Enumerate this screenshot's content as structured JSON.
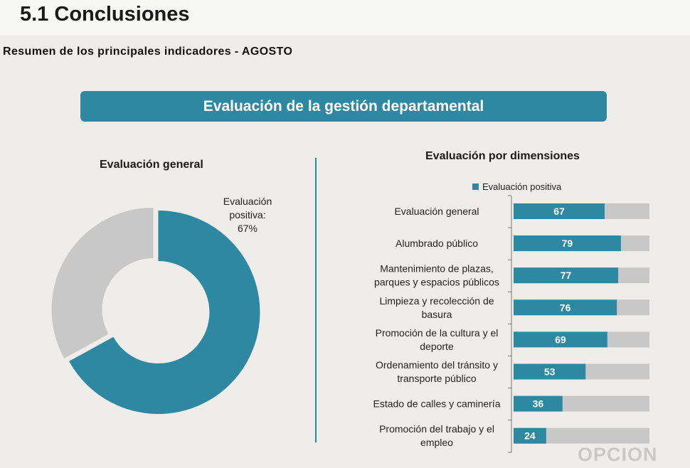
{
  "page": {
    "title": "5.1 Conclusiones",
    "subtitle": "Resumen de los principales indicadores - AGOSTO",
    "banner": "Evaluación de la gestión departamental",
    "watermark": "OPCION"
  },
  "colors": {
    "accent": "#2f88a1",
    "remainder": "#c8c8c8",
    "background": "#eeede9"
  },
  "chart_data": [
    {
      "type": "pie",
      "title": "Evaluación general",
      "slices": [
        {
          "label": "Evaluación positiva",
          "value": 67,
          "color": "#2f88a1"
        },
        {
          "label": "",
          "value": 33,
          "color": "#c8c8c8"
        }
      ],
      "annotation": {
        "line1": "Evaluación",
        "line2": "positiva:",
        "line3": "67%"
      }
    },
    {
      "type": "bar",
      "orientation": "horizontal",
      "stacked_to": 100,
      "title": "Evaluación por dimensiones",
      "legend": "Evaluación positiva",
      "categories": [
        [
          "Evaluación general"
        ],
        [
          "Alumbrado público"
        ],
        [
          "Mantenimiento de plazas,",
          "parques y espacios públicos"
        ],
        [
          "Limpieza y recolección de",
          "basura"
        ],
        [
          "Promoción de la cultura y el",
          "deporte"
        ],
        [
          "Ordenamiento del tránsito y",
          "transporte público"
        ],
        [
          "Estado de calles y caminería"
        ],
        [
          "Promoción del trabajo y el",
          "empleo"
        ]
      ],
      "values": [
        67,
        79,
        77,
        76,
        69,
        53,
        36,
        24
      ],
      "xlim": [
        0,
        100
      ]
    }
  ]
}
